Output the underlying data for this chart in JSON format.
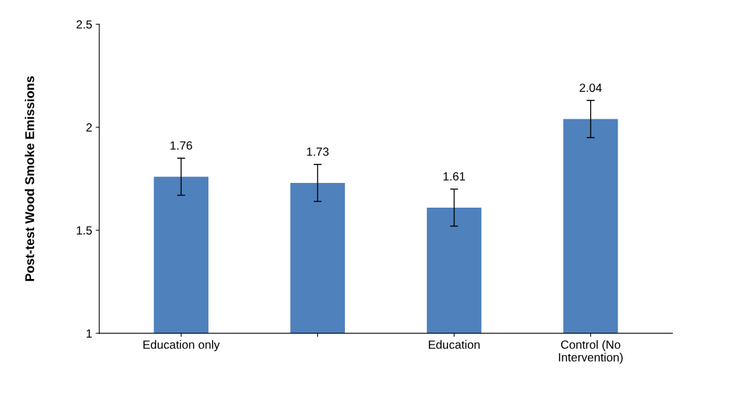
{
  "chart_data": {
    "type": "bar",
    "ylabel": "Post-test Wood Smoke Emissions",
    "categories": [
      "Education only",
      null,
      "Education",
      "Control (No\nIntervention)"
    ],
    "values": [
      1.76,
      1.73,
      1.61,
      2.04
    ],
    "errors": [
      0.09,
      0.09,
      0.09,
      0.09
    ],
    "color": "#4f81bd",
    "ylim": [
      1,
      2.5
    ],
    "yticks": [
      1,
      1.5,
      2,
      2.5
    ],
    "grid": false,
    "data_labels": true
  }
}
